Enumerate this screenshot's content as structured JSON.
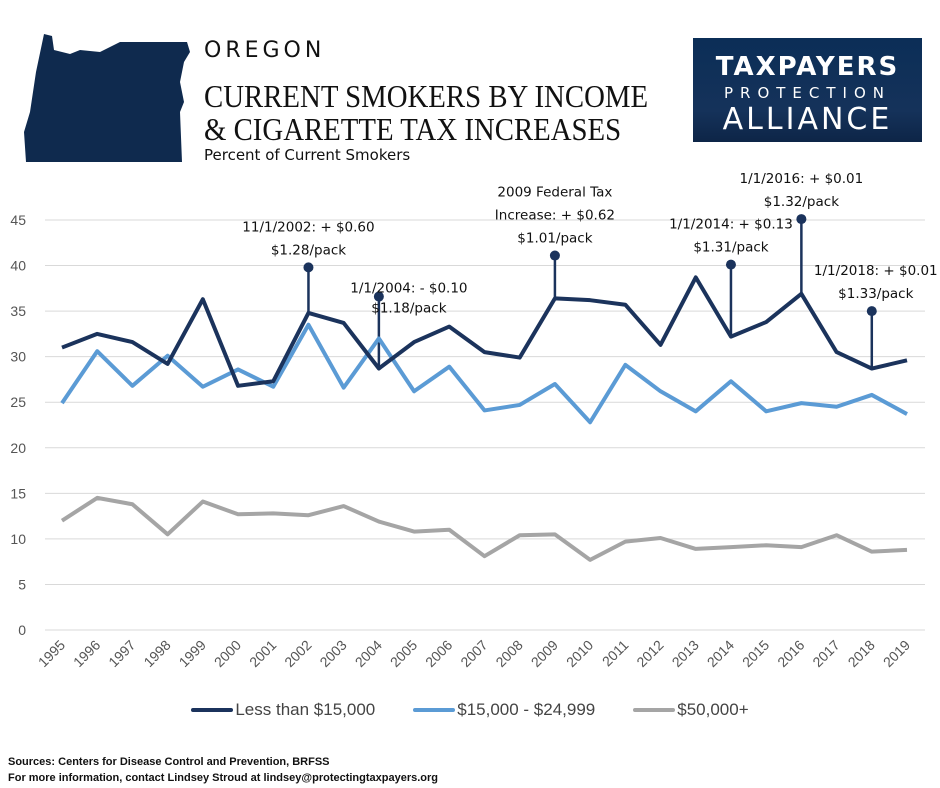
{
  "header": {
    "state": "OREGON",
    "title_line1": "CURRENT SMOKERS BY INCOME",
    "title_line2": "& CIGARETTE TAX INCREASES",
    "subtitle": "Percent of Current Smokers"
  },
  "logo": {
    "line1": "TAXPAYERS",
    "line2": "PROTECTION",
    "line3": "ALLIANCE"
  },
  "footer": {
    "sources": "Sources:  Centers for Disease Control and Prevention, BRFSS",
    "contact": "For more information, contact Lindsey Stroud at lindsey@protectingtaxpayers.org"
  },
  "chart_data": {
    "type": "line",
    "title": "CURRENT SMOKERS BY INCOME & CIGARETTE TAX INCREASES",
    "ylabel": "Percent of Current Smokers",
    "ylim": [
      0,
      45
    ],
    "yticks": [
      "0",
      "5",
      "10",
      "15",
      "20",
      "25",
      "30",
      "35",
      "40",
      "45"
    ],
    "grid": true,
    "legend_position": "bottom",
    "categories": [
      "1995",
      "1996",
      "1997",
      "1998",
      "1999",
      "2000",
      "2001",
      "2002",
      "2003",
      "2004",
      "2005",
      "2006",
      "2007",
      "2008",
      "2009",
      "2010",
      "2011",
      "2012",
      "2013",
      "2014",
      "2015",
      "2016",
      "2017",
      "2018",
      "2019"
    ],
    "series": [
      {
        "name": "Less than $15,000",
        "color": "#1b335c",
        "values": [
          31.0,
          32.5,
          31.6,
          29.2,
          36.3,
          26.8,
          27.3,
          34.8,
          33.7,
          28.7,
          31.6,
          33.3,
          30.5,
          29.9,
          36.4,
          36.2,
          35.7,
          31.3,
          38.7,
          32.2,
          33.8,
          36.9,
          30.5,
          28.7,
          29.6
        ]
      },
      {
        "name": "$15,000 - $24,999",
        "color": "#5b9bd5",
        "values": [
          24.9,
          30.6,
          26.8,
          30.1,
          26.7,
          28.6,
          26.7,
          33.5,
          26.6,
          32.0,
          26.2,
          28.9,
          24.1,
          24.7,
          27.0,
          22.8,
          29.1,
          26.2,
          24.0,
          27.3,
          24.0,
          24.9,
          24.5,
          25.8,
          23.7
        ]
      },
      {
        "name": "$50,000+",
        "color": "#a5a5a5",
        "values": [
          12.0,
          14.5,
          13.8,
          10.5,
          14.1,
          12.7,
          12.8,
          12.6,
          13.6,
          11.9,
          10.8,
          11.0,
          8.1,
          10.4,
          10.5,
          7.7,
          9.7,
          10.1,
          8.9,
          9.1,
          9.3,
          9.1,
          10.4,
          8.6,
          8.8
        ]
      }
    ],
    "annotations": [
      {
        "year": "2002",
        "marker_value": 39.8,
        "lines": [
          "11/1/2002: + $0.60",
          "$1.28/pack"
        ]
      },
      {
        "year": "2004",
        "marker_value": 36.6,
        "lines": [
          "1/1/2004: - $0.10",
          "$1.18/pack"
        ]
      },
      {
        "year": "2009",
        "marker_value": 41.1,
        "lines": [
          "2009 Federal Tax",
          "Increase: + $0.62",
          "$1.01/pack"
        ]
      },
      {
        "year": "2014",
        "marker_value": 40.1,
        "lines": [
          "1/1/2014: + $0.13",
          "$1.31/pack"
        ]
      },
      {
        "year": "2016",
        "marker_value": 45.1,
        "lines": [
          "1/1/2016: + $0.01",
          "$1.32/pack"
        ]
      },
      {
        "year": "2018",
        "marker_value": 35.0,
        "lines": [
          "1/1/2018: + $0.01",
          "$1.33/pack"
        ]
      }
    ]
  }
}
